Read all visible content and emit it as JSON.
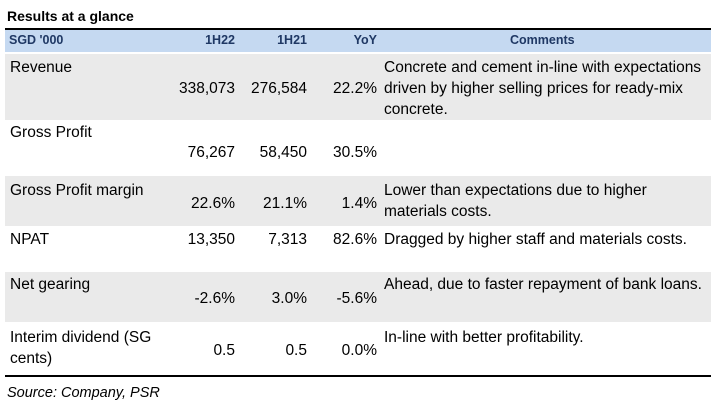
{
  "title": "Results at a glance",
  "header": {
    "label": "SGD '000",
    "col1": "1H22",
    "col2": "1H21",
    "col3": "YoY",
    "comments": "Comments"
  },
  "rows": [
    {
      "label": "Revenue",
      "v1": "338,073",
      "v2": "276,584",
      "v3": "22.2%",
      "comment": "Concrete and cement in-line with expectations driven by higher selling prices for ready-mix concrete."
    },
    {
      "label": "Gross Profit",
      "v1": "76,267",
      "v2": "58,450",
      "v3": "30.5%",
      "comment": ""
    },
    {
      "label": "Gross Profit margin",
      "v1": "22.6%",
      "v2": "21.1%",
      "v3": "1.4%",
      "comment": "Lower than expectations due to higher materials costs."
    },
    {
      "label": "NPAT",
      "v1": "13,350",
      "v2": "7,313",
      "v3": "82.6%",
      "comment": "Dragged by higher staff and materials costs."
    },
    {
      "label": "Net gearing",
      "v1": "-2.6%",
      "v2": "3.0%",
      "v3": "-5.6%",
      "comment": "Ahead, due to faster repayment of bank loans."
    },
    {
      "label": "Interim dividend (SG cents)",
      "v1": "0.5",
      "v2": "0.5",
      "v3": "0.0%",
      "comment": "In-line with better profitability."
    }
  ],
  "source": "Source: Company, PSR"
}
